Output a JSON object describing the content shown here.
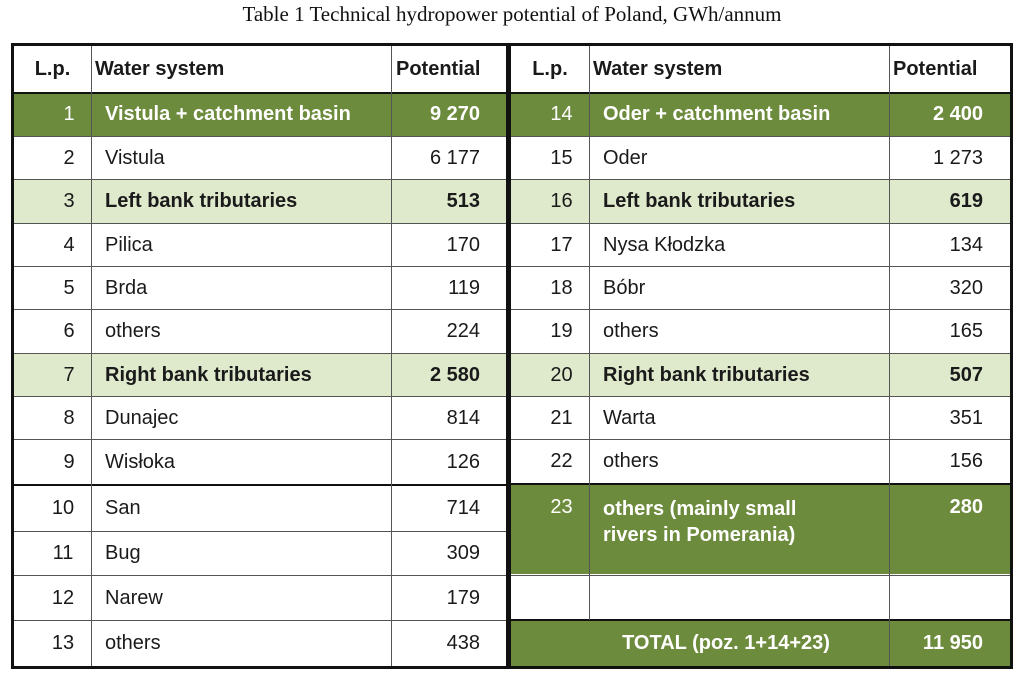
{
  "caption": "Table 1  Technical hydropower potential of Poland, GWh/annum",
  "headers": {
    "lp": "L.p.",
    "water_system": "Water system",
    "potential": "Potential"
  },
  "left_rows": [
    {
      "lp": "1",
      "name": "Vistula + catchment basin",
      "value": "9 270"
    },
    {
      "lp": "2",
      "name": "Vistula",
      "value": "6 177"
    },
    {
      "lp": "3",
      "name": "Left bank tributaries",
      "value": "513"
    },
    {
      "lp": "4",
      "name": "Pilica",
      "value": "170"
    },
    {
      "lp": "5",
      "name": "Brda",
      "value": "119"
    },
    {
      "lp": "6",
      "name": "others",
      "value": "224"
    },
    {
      "lp": "7",
      "name": "Right bank tributaries",
      "value": "2 580"
    },
    {
      "lp": "8",
      "name": "Dunajec",
      "value": "814"
    },
    {
      "lp": "9",
      "name": "Wisłoka",
      "value": "126"
    },
    {
      "lp": "10",
      "name": "San",
      "value": "714"
    },
    {
      "lp": "11",
      "name": "Bug",
      "value": "309"
    },
    {
      "lp": "12",
      "name": "Narew",
      "value": "179"
    },
    {
      "lp": "13",
      "name": "others",
      "value": "438"
    }
  ],
  "right_rows": [
    {
      "lp": "14",
      "name": "Oder + catchment basin",
      "value": "2 400"
    },
    {
      "lp": "15",
      "name": "Oder",
      "value": "1 273"
    },
    {
      "lp": "16",
      "name": "Left bank tributaries",
      "value": "619"
    },
    {
      "lp": "17",
      "name": "Nysa Kłodzka",
      "value": "134"
    },
    {
      "lp": "18",
      "name": "Bóbr",
      "value": "320"
    },
    {
      "lp": "19",
      "name": "others",
      "value": "165"
    },
    {
      "lp": "20",
      "name": "Right bank tributaries",
      "value": "507"
    },
    {
      "lp": "21",
      "name": "Warta",
      "value": "351"
    },
    {
      "lp": "22",
      "name": "others",
      "value": "156"
    },
    {
      "lp": "23",
      "name": "others (mainly small rivers in Pomerania)",
      "value": "280"
    }
  ],
  "total": {
    "label": "TOTAL (poz. 1+14+23)",
    "value": "11 950"
  },
  "colors": {
    "dark_green": "#6d8b3c",
    "light_green": "#dfe9cc"
  }
}
